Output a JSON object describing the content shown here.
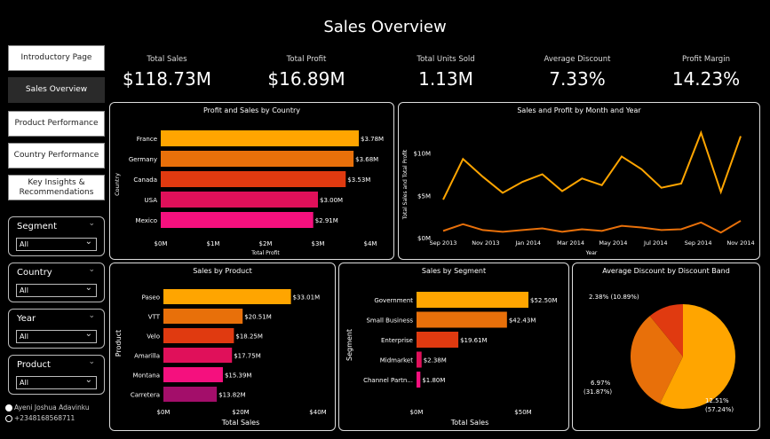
{
  "title": "Sales Overview",
  "nav": [
    {
      "label": "Introductory Page",
      "active": false
    },
    {
      "label": "Sales Overview",
      "active": true
    },
    {
      "label": "Product Performance",
      "active": false
    },
    {
      "label": "Country Performance",
      "active": false
    },
    {
      "label": "Key Insights & Recommendations",
      "active": false
    }
  ],
  "slicers": [
    {
      "label": "Segment",
      "value": "All"
    },
    {
      "label": "Country",
      "value": "All"
    },
    {
      "label": "Year",
      "value": "All"
    },
    {
      "label": "Product",
      "value": "All"
    }
  ],
  "kpis": [
    {
      "label": "Total Sales",
      "value": "$118.73M"
    },
    {
      "label": "Total Profit",
      "value": "$16.89M"
    },
    {
      "label": "Total Units Sold",
      "value": "1.13M"
    },
    {
      "label": "Average Discount",
      "value": "7.33%"
    },
    {
      "label": "Profit Margin",
      "value": "14.23%"
    }
  ],
  "credit": {
    "name": "Ayeni Joshua Adavinku",
    "phone": "+2348168568711"
  },
  "colors": {
    "orange": "#FFA500",
    "dark_orange": "#E8700A",
    "red_orange": "#E03A10",
    "crimson": "#E0105A",
    "magenta": "#F5107E",
    "purple": "#A30E6A"
  },
  "chart_data": [
    {
      "id": "profit_sales_country",
      "type": "bar",
      "title": "Profit and Sales by Country",
      "xlabel": "Total Profit",
      "ylabel": "Country",
      "categories": [
        "France",
        "Germany",
        "Canada",
        "USA",
        "Mexico"
      ],
      "values": [
        3.78,
        3.68,
        3.53,
        3.0,
        2.91
      ],
      "labels": [
        "$3.78M",
        "$3.68M",
        "$3.53M",
        "$3.00M",
        "$2.91M"
      ],
      "xticks": [
        "$0M",
        "$1M",
        "$2M",
        "$3M",
        "$4M"
      ],
      "xlim": [
        0,
        4
      ],
      "colors": [
        "#FFA500",
        "#E8700A",
        "#E03A10",
        "#E0105A",
        "#F5107E"
      ]
    },
    {
      "id": "sales_profit_month",
      "type": "line",
      "title": "Sales and Profit by Month and Year",
      "xlabel": "Year",
      "ylabel": "Total Sales and Total Profit",
      "xticks": [
        "Sep 2013",
        "Nov 2013",
        "Jan 2014",
        "Mar 2014",
        "May 2014",
        "Jul 2014",
        "Sep 2014",
        "Nov 2014"
      ],
      "yticks": [
        "$0M",
        "$5M",
        "$10M"
      ],
      "ylim": [
        0,
        13
      ],
      "series": [
        {
          "name": "Total Sales",
          "color": "#FFA500",
          "values": [
            4.5,
            9.3,
            7.2,
            5.3,
            6.6,
            7.5,
            5.5,
            7.0,
            6.2,
            9.6,
            8.1,
            5.9,
            6.4,
            12.4,
            5.4,
            12.0
          ]
        },
        {
          "name": "Total Profit",
          "color": "#E8700A",
          "values": [
            0.8,
            1.6,
            0.9,
            0.7,
            0.9,
            1.1,
            0.7,
            1.0,
            0.8,
            1.4,
            1.2,
            0.9,
            1.0,
            1.8,
            0.6,
            2.0
          ]
        }
      ]
    },
    {
      "id": "sales_by_product",
      "type": "bar",
      "title": "Sales by Product",
      "xlabel": "Total Sales",
      "ylabel": "Product",
      "categories": [
        "Paseo",
        "VTT",
        "Velo",
        "Amarilla",
        "Montana",
        "Carretera"
      ],
      "values": [
        33.01,
        20.51,
        18.25,
        17.75,
        15.39,
        13.82
      ],
      "labels": [
        "$33.01M",
        "$20.51M",
        "$18.25M",
        "$17.75M",
        "$15.39M",
        "$13.82M"
      ],
      "xticks": [
        "$0M",
        "$20M",
        "$40M"
      ],
      "xlim": [
        0,
        40
      ],
      "colors": [
        "#FFA500",
        "#E8700A",
        "#E03A10",
        "#E0105A",
        "#F5107E",
        "#A30E6A"
      ]
    },
    {
      "id": "sales_by_segment",
      "type": "bar",
      "title": "Sales by Segment",
      "xlabel": "Total Sales",
      "ylabel": "Segment",
      "categories": [
        "Government",
        "Small Business",
        "Enterprise",
        "Midmarket",
        "Channel Partn..."
      ],
      "values": [
        52.5,
        42.43,
        19.61,
        2.38,
        1.8
      ],
      "labels": [
        "$52.50M",
        "$42.43M",
        "$19.61M",
        "$2.38M",
        "$1.80M"
      ],
      "xticks": [
        "$0M",
        "$50M"
      ],
      "xlim": [
        0,
        50
      ],
      "colors": [
        "#FFA500",
        "#E8700A",
        "#E03A10",
        "#E0105A",
        "#F5107E"
      ]
    },
    {
      "id": "discount_band",
      "type": "pie",
      "title": "Average Discount by Discount Band",
      "slices": [
        {
          "value": 57.24,
          "label": "12.51%",
          "pct": "(57.24%)",
          "color": "#FFA500"
        },
        {
          "value": 31.87,
          "label": "6.97%",
          "pct": "(31.87%)",
          "color": "#E8700A"
        },
        {
          "value": 10.89,
          "label": "2.38% (10.89%)",
          "pct": "",
          "color": "#E03A10"
        }
      ]
    }
  ]
}
